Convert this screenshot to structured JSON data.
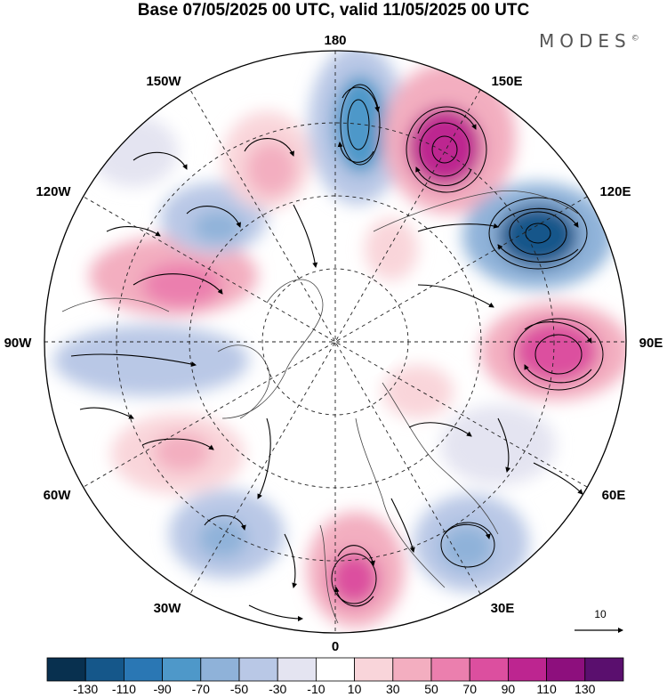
{
  "title": "Base 07/05/2025 00 UTC, valid 11/05/2025 00 UTC",
  "brand": "MODES",
  "brand_mark": "©",
  "longitude_labels": {
    "top": "180",
    "top_right": "150E",
    "upper_right": "120E",
    "right": "90E",
    "lower_right": "60E",
    "bottom_right": "30E",
    "bottom": "0",
    "bottom_left": "30W",
    "lower_left": "60W",
    "left": "90W",
    "upper_left": "120W",
    "top_left": "150W"
  },
  "vector_reference": {
    "label": "10"
  },
  "colorbar": {
    "ticks": [
      "-130",
      "-110",
      "-90",
      "-70",
      "-50",
      "-30",
      "-10",
      "10",
      "30",
      "50",
      "70",
      "90",
      "110",
      "130"
    ],
    "colors": [
      "#08304f",
      "#15578a",
      "#2a77b4",
      "#4e98c9",
      "#8fb2d9",
      "#b9c8e6",
      "#e4e4f1",
      "#ffffff",
      "#f9d5da",
      "#f3aec0",
      "#eb7fae",
      "#dc4f9f",
      "#bd2590",
      "#8d0f7d",
      "#5a0f6e"
    ]
  },
  "field": {
    "anomalies": [
      {
        "sign": "negative",
        "level": -70,
        "color": "#4e98c9",
        "location": "north of 180"
      },
      {
        "sign": "positive",
        "level": 110,
        "color": "#8d0f7d",
        "location": "near 150E"
      },
      {
        "sign": "negative",
        "level": -130,
        "color": "#08304f",
        "location": "near 120E"
      },
      {
        "sign": "positive",
        "level": 90,
        "color": "#dc4f9f",
        "location": "near 90E"
      },
      {
        "sign": "negative",
        "level": -50,
        "color": "#8fb2d9",
        "location": "near 45E"
      },
      {
        "sign": "positive",
        "level": 90,
        "color": "#dc4f9f",
        "location": "near 0"
      },
      {
        "sign": "negative",
        "level": -50,
        "color": "#8fb2d9",
        "location": "near 30W"
      },
      {
        "sign": "positive",
        "level": 50,
        "color": "#f3aec0",
        "location": "near 60W"
      },
      {
        "sign": "negative",
        "level": -30,
        "color": "#b9c8e6",
        "location": "near 90W"
      },
      {
        "sign": "positive",
        "level": 70,
        "color": "#eb7fae",
        "location": "near 110W"
      },
      {
        "sign": "negative",
        "level": -50,
        "color": "#8fb2d9",
        "location": "near 135W"
      },
      {
        "sign": "positive",
        "level": 50,
        "color": "#f3aec0",
        "location": "near 160W"
      }
    ]
  }
}
